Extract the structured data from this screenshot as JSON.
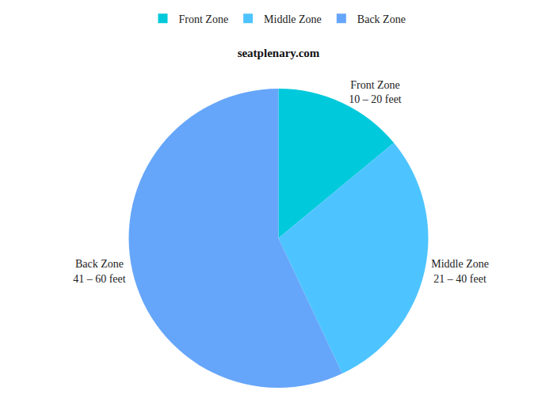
{
  "chart_data": {
    "type": "pie",
    "title": "seatplenary.com",
    "categories": [
      "Front Zone",
      "Middle Zone",
      "Back Zone"
    ],
    "ranges": [
      "10 – 20 feet",
      "21 – 40 feet",
      "41 – 60 feet"
    ],
    "values": [
      14,
      29,
      57
    ],
    "colors": [
      "#00C9DB",
      "#4DC4FF",
      "#66A6FA"
    ],
    "legend": "top"
  }
}
